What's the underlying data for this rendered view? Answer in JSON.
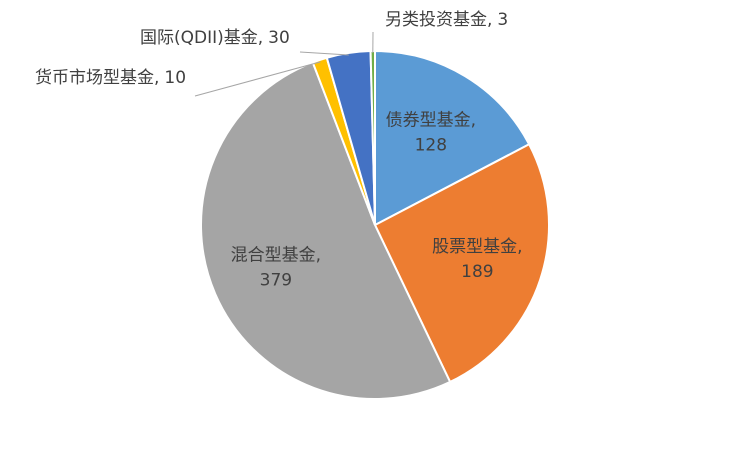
{
  "chart_data": {
    "type": "pie",
    "categories": [
      "债券型基金",
      "股票型基金",
      "混合型基金",
      "货币市场型基金",
      "国际(QDII)基金",
      "另类投资基金"
    ],
    "values": [
      128,
      189,
      379,
      10,
      30,
      3
    ],
    "colors": [
      "#5b9bd5",
      "#ed7d31",
      "#a5a5a5",
      "#ffc000",
      "#4472c4",
      "#70ad47"
    ],
    "data_label_separator": ","
  }
}
